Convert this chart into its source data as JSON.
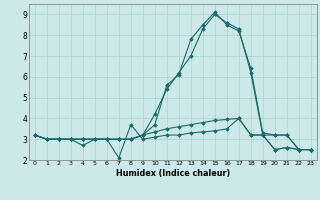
{
  "xlabel": "Humidex (Indice chaleur)",
  "background_color": "#cce8e8",
  "grid_color": "#b0d0d0",
  "line_color": "#1a6b6b",
  "xlim": [
    -0.5,
    23.5
  ],
  "ylim": [
    2,
    9.5
  ],
  "xticks": [
    0,
    1,
    2,
    3,
    4,
    5,
    6,
    7,
    8,
    9,
    10,
    11,
    12,
    13,
    14,
    15,
    16,
    17,
    18,
    19,
    20,
    21,
    22,
    23
  ],
  "yticks": [
    2,
    3,
    4,
    5,
    6,
    7,
    8,
    9
  ],
  "series": [
    [
      3.2,
      3.0,
      3.0,
      3.0,
      2.7,
      3.0,
      3.0,
      2.1,
      3.7,
      3.0,
      3.1,
      3.2,
      3.2,
      3.3,
      3.35,
      3.4,
      3.5,
      4.0,
      3.2,
      3.2,
      2.5,
      2.6,
      2.5,
      2.5
    ],
    [
      3.2,
      3.0,
      3.0,
      3.0,
      3.0,
      3.0,
      3.0,
      3.0,
      3.0,
      3.2,
      3.35,
      3.5,
      3.6,
      3.7,
      3.8,
      3.9,
      3.95,
      4.0,
      3.2,
      3.2,
      2.5,
      2.6,
      2.5,
      2.5
    ],
    [
      3.2,
      3.0,
      3.0,
      3.0,
      3.0,
      3.0,
      3.0,
      3.0,
      3.0,
      3.2,
      4.2,
      5.4,
      6.2,
      7.0,
      8.3,
      9.0,
      8.6,
      8.3,
      6.2,
      3.2,
      3.2,
      3.2,
      2.5,
      2.5
    ],
    [
      3.2,
      3.0,
      3.0,
      3.0,
      3.0,
      3.0,
      3.0,
      3.0,
      3.0,
      3.2,
      3.7,
      5.6,
      6.1,
      7.8,
      8.5,
      9.1,
      8.5,
      8.2,
      6.4,
      3.3,
      3.2,
      3.2,
      2.5,
      2.5
    ]
  ]
}
